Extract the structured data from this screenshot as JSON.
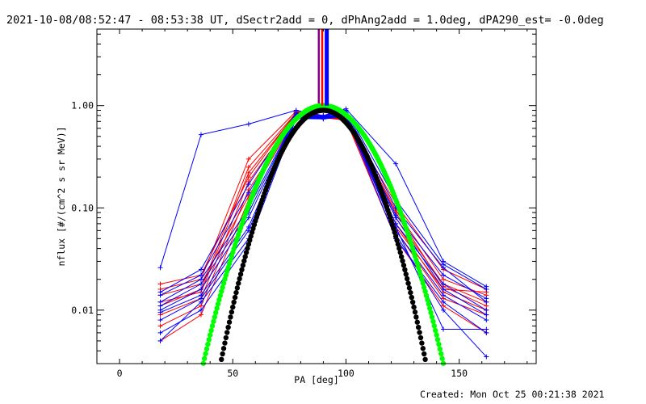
{
  "header": {
    "title": "2021-10-08/08:52:47 - 08:53:38 UT, dSectr2add = 0, dPhAng2add = 1.0deg, dPA290_est= -0.0deg",
    "created": "Created: Mon Oct 25 00:21:38 2021"
  },
  "chart_data": {
    "type": "line",
    "xlabel": "PA [deg]",
    "ylabel": "nflux [#/(cm^2 s sr MeV)]",
    "xlim": [
      -10,
      184
    ],
    "ylim": [
      0.003,
      5.6
    ],
    "yscale": "log",
    "xticks": [
      0,
      50,
      100,
      150
    ],
    "xtick_labels": [
      "0",
      "50",
      "100",
      "150"
    ],
    "yticks": [
      0.01,
      0.1,
      1.0
    ],
    "ytick_labels": [
      "0.01",
      "0.10",
      "1.00"
    ],
    "pa_bins": [
      18,
      36,
      57,
      78,
      90,
      100,
      122,
      143,
      162
    ],
    "series": [
      {
        "color": "#ff0000",
        "values": [
          0.016,
          0.02,
          0.3,
          0.88,
          0.8,
          0.78,
          0.095,
          0.02,
          0.014
        ]
      },
      {
        "color": "#ff0000",
        "values": [
          0.012,
          0.015,
          0.22,
          0.84,
          0.79,
          0.76,
          0.08,
          0.018,
          0.012
        ]
      },
      {
        "color": "#ff0000",
        "values": [
          0.009,
          0.013,
          0.18,
          0.82,
          0.78,
          0.75,
          0.07,
          0.015,
          0.01
        ]
      },
      {
        "color": "#ff0000",
        "values": [
          0.007,
          0.011,
          0.15,
          0.8,
          0.77,
          0.73,
          0.06,
          0.013,
          0.009
        ]
      },
      {
        "color": "#ff0000",
        "values": [
          0.018,
          0.022,
          0.2,
          0.86,
          0.8,
          0.77,
          0.11,
          0.025,
          0.016
        ]
      },
      {
        "color": "#ff0000",
        "values": [
          0.005,
          0.009,
          0.12,
          0.79,
          0.76,
          0.72,
          0.05,
          0.011,
          0.006
        ]
      },
      {
        "color": "#ff0000",
        "values": [
          0.011,
          0.016,
          0.25,
          0.85,
          0.79,
          0.76,
          0.09,
          0.017,
          0.011
        ]
      },
      {
        "color": "#ff0000",
        "values": [
          0.014,
          0.018,
          0.13,
          0.81,
          0.78,
          0.74,
          0.065,
          0.016,
          0.015
        ]
      },
      {
        "color": "#0000ff",
        "values": [
          0.026,
          0.52,
          0.66,
          0.9,
          0.8,
          0.93,
          0.27,
          0.03,
          0.017
        ]
      },
      {
        "color": "#0000ff",
        "values": [
          0.015,
          0.025,
          0.17,
          0.85,
          0.79,
          0.9,
          0.12,
          0.028,
          0.016
        ]
      },
      {
        "color": "#0000ff",
        "values": [
          0.012,
          0.02,
          0.1,
          0.8,
          0.77,
          0.85,
          0.085,
          0.022,
          0.013
        ]
      },
      {
        "color": "#0000ff",
        "values": [
          0.01,
          0.016,
          0.08,
          0.78,
          0.76,
          0.83,
          0.07,
          0.018,
          0.01
        ]
      },
      {
        "color": "#0000ff",
        "values": [
          0.008,
          0.013,
          0.06,
          0.76,
          0.75,
          0.8,
          0.06,
          0.014,
          0.008
        ]
      },
      {
        "color": "#0000ff",
        "values": [
          0.006,
          0.01,
          0.045,
          0.75,
          0.74,
          0.78,
          0.05,
          0.012,
          0.006
        ]
      },
      {
        "color": "#0000ff",
        "values": [
          0.005,
          0.012,
          0.05,
          0.77,
          0.75,
          0.82,
          0.055,
          0.01,
          0.0035
        ]
      },
      {
        "color": "#0000ff",
        "values": [
          0.014,
          0.022,
          0.14,
          0.83,
          0.78,
          0.88,
          0.1,
          0.026,
          0.012
        ]
      },
      {
        "color": "#0000ff",
        "values": [
          0.011,
          0.018,
          0.09,
          0.79,
          0.76,
          0.84,
          0.08,
          0.016,
          0.009
        ]
      },
      {
        "color": "#0000ff",
        "values": [
          0.0095,
          0.014,
          0.065,
          0.77,
          0.75,
          0.81,
          0.065,
          0.0065,
          0.0065
        ]
      }
    ],
    "fit_curves": [
      {
        "color": "#00ff00",
        "pa_min": 35,
        "pa_max": 145,
        "peak": 1.0,
        "center": 90,
        "halfwidth_deg": 22
      },
      {
        "color": "#000000",
        "pa_min": 40,
        "pa_max": 140,
        "peak": 0.9,
        "center": 90,
        "halfwidth_deg": 19
      }
    ],
    "spikes": [
      {
        "color": "#800080",
        "pa": 88,
        "from": 1.05,
        "to": 5.6
      },
      {
        "color": "#ff0000",
        "pa": 89.5,
        "from": 1.0,
        "to": 5.6
      },
      {
        "color": "#0000ff",
        "pa": 91.5,
        "from": 1.0,
        "to": 5.6
      }
    ]
  }
}
